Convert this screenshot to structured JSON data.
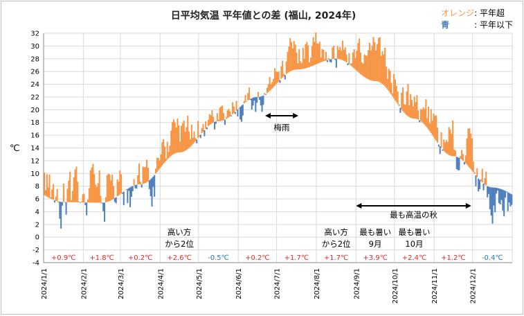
{
  "title": "日平均気温 平年値との差 (福山, 2024年)",
  "legend": {
    "orange_key": "オレンジ",
    "orange_label": ": 平年超",
    "blue_key": "青",
    "blue_label": ": 平年以下"
  },
  "colors": {
    "above": "#f79646",
    "below": "#4f81bd",
    "anom_pos": "#e0282a",
    "anom_neg": "#1f77b4"
  },
  "chart_data": {
    "type": "bar",
    "ylabel": "℃",
    "ylim": [
      -4,
      32
    ],
    "yticks": [
      -4,
      -2,
      0,
      2,
      4,
      6,
      8,
      10,
      12,
      14,
      16,
      18,
      20,
      22,
      24,
      26,
      28,
      30,
      32
    ],
    "xticks": [
      "2024/1/1",
      "2024/2/1",
      "2024/3/1",
      "2024/4/1",
      "2024/5/1",
      "2024/6/1",
      "2024/7/1",
      "2024/8/1",
      "2024/9/1",
      "2024/10/1",
      "2024/11/1",
      "2024/12/1"
    ],
    "month_anomalies": [
      "+0.9℃",
      "+1.8℃",
      "+0.2℃",
      "+2.6℃",
      "-0.5℃",
      "+0.2℃",
      "+1.7℃",
      "+1.7℃",
      "+3.9℃",
      "+2.4℃",
      "+1.2℃",
      "-0.4℃"
    ],
    "normal_monthly": [
      5.5,
      5.4,
      8.3,
      13.3,
      18.2,
      22.0,
      26.3,
      28.0,
      24.5,
      18.6,
      12.7,
      7.8
    ],
    "monthly_deviation": [
      0.9,
      1.8,
      0.2,
      2.6,
      -0.5,
      0.2,
      1.7,
      1.7,
      3.9,
      2.4,
      1.2,
      -0.4
    ],
    "annotations": [
      {
        "lines": [
          "高い方",
          "から2位"
        ],
        "month": 4
      },
      {
        "lines": [
          "高い方",
          "から2位"
        ],
        "month": 8
      },
      {
        "lines": [
          "最も暑い",
          "9月"
        ],
        "month": 9
      },
      {
        "lines": [
          "最も暑い",
          "10月"
        ],
        "month": 10
      }
    ],
    "ranges": [
      {
        "label": "梅雨",
        "from": "2024/6/22",
        "to": "2024/7/18"
      },
      {
        "label": "最も高温の秋",
        "from": "2024/9/1",
        "to": "2024/11/30"
      }
    ]
  }
}
